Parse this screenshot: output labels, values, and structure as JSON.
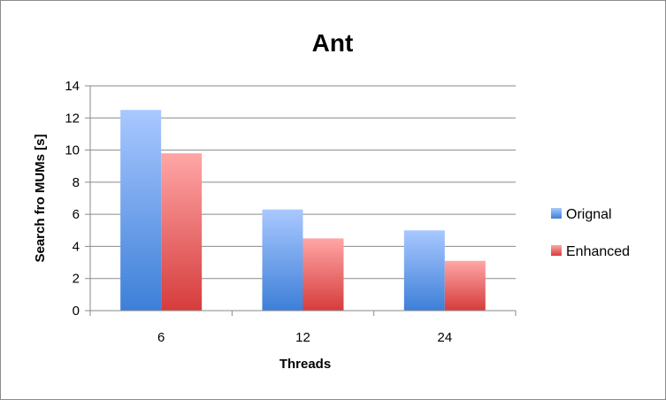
{
  "chart_data": {
    "type": "bar",
    "title": "Ant",
    "xlabel": "Threads",
    "ylabel": "Search fro MUMs [s]",
    "categories": [
      "6",
      "12",
      "24"
    ],
    "series": [
      {
        "name": "Orignal",
        "values": [
          12.5,
          6.3,
          5.0
        ],
        "color_top": "#a9c8ff",
        "color_bottom": "#3d7fd8"
      },
      {
        "name": "Enhanced",
        "values": [
          9.8,
          4.5,
          3.1
        ],
        "color_top": "#ffa6a6",
        "color_bottom": "#d63c3c"
      }
    ],
    "ylim": [
      0,
      14
    ],
    "yticks": [
      "0",
      "2",
      "4",
      "6",
      "8",
      "10",
      "12",
      "14"
    ],
    "grid": true,
    "legend_position": "right"
  }
}
